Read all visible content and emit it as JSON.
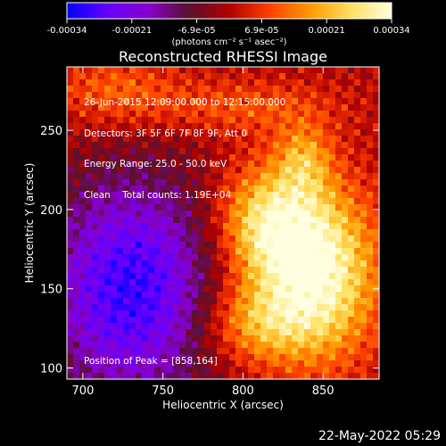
{
  "chart_data": {
    "type": "heatmap",
    "title": "Reconstructed RHESSI Image",
    "xlabel": "Heliocentric X (arcsec)",
    "ylabel": "Heliocentric Y (arcsec)",
    "xlim": [
      690,
      885
    ],
    "ylim": [
      93,
      290
    ],
    "xticks": [
      700,
      750,
      800,
      850
    ],
    "yticks": [
      100,
      150,
      200,
      250
    ],
    "colorbar": {
      "unit_label": "(photons cm⁻² s⁻¹ asec⁻²)",
      "range": [
        -0.00034,
        0.00034
      ],
      "ticks": [
        "-0.00034",
        "-0.00021",
        "-6.9e-05",
        "6.9e-05",
        "0.00021",
        "0.00034"
      ],
      "colors": [
        "#0000ff",
        "#6600ff",
        "#8800cc",
        "#5a1030",
        "#b00000",
        "#ff4000",
        "#ff9a00",
        "#ffe060",
        "#ffffe0"
      ]
    },
    "annotations": {
      "time_range": "26-Jun-2015 12:09:00.000 to 12:15:00.000",
      "detectors": "Detectors: 3F 5F 6F 7F 8F 9F, Att 0",
      "energy": "Energy Range: 25.0 - 50.0 keV",
      "method": "Clean",
      "counts": "Total counts: 1.19E+04",
      "peak": "Position of Peak = [858,164]"
    },
    "peak": [
      858,
      164
    ],
    "components": [
      {
        "name": "bright source",
        "x": 848,
        "y": 160,
        "sx": 26,
        "sy": 38,
        "amp": 1.0
      },
      {
        "name": "bright lobe",
        "x": 815,
        "y": 190,
        "sx": 22,
        "sy": 26,
        "amp": 0.8
      },
      {
        "name": "lower arm",
        "x": 808,
        "y": 128,
        "sx": 24,
        "sy": 18,
        "amp": 0.55
      },
      {
        "name": "upper knot",
        "x": 838,
        "y": 232,
        "sx": 12,
        "sy": 16,
        "amp": 0.45
      },
      {
        "name": "northwest patch",
        "x": 720,
        "y": 275,
        "sx": 28,
        "sy": 16,
        "amp": 0.35
      },
      {
        "name": "north ridge",
        "x": 800,
        "y": 265,
        "sx": 40,
        "sy": 12,
        "amp": 0.3
      },
      {
        "name": "negative trough",
        "x": 730,
        "y": 150,
        "sx": 38,
        "sy": 50,
        "amp": -0.9
      }
    ]
  },
  "footer": {
    "timestamp": "22-May-2022 05:29"
  }
}
